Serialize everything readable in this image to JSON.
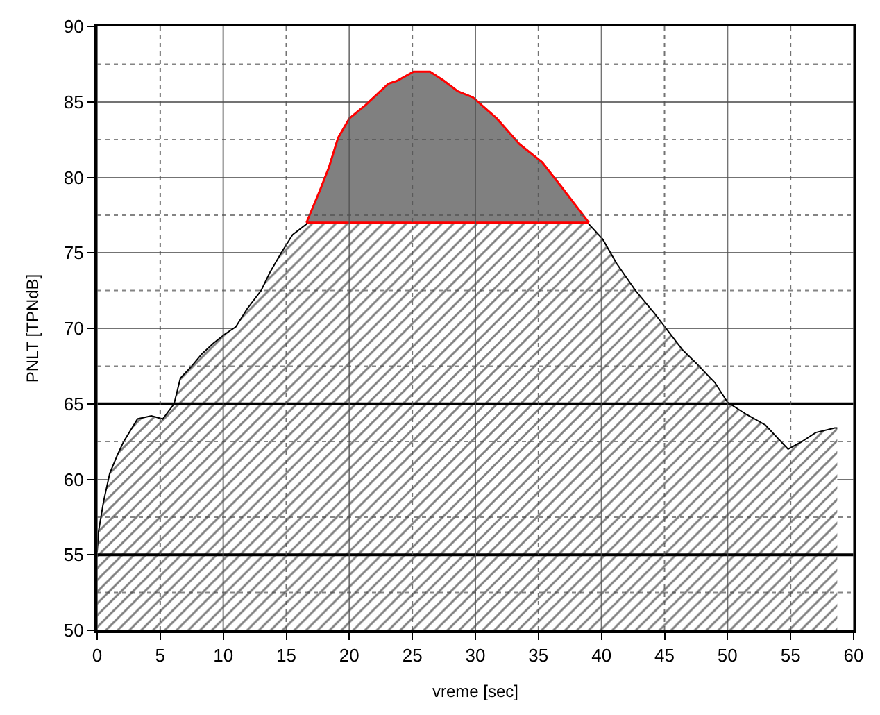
{
  "chart_data": {
    "type": "area",
    "xlabel": "vreme [sec]",
    "ylabel": "PNLT [TPNdB]",
    "xlim": [
      0,
      60
    ],
    "xticks": [
      0,
      5,
      10,
      15,
      20,
      25,
      30,
      35,
      40,
      45,
      50,
      55,
      60
    ],
    "ylim": [
      50,
      90
    ],
    "yticks": [
      50,
      55,
      60,
      65,
      70,
      75,
      80,
      85,
      90
    ],
    "grid": true,
    "series": [
      {
        "color": "#000000",
        "x": [
          0,
          0.1,
          0.5,
          1.0,
          1.6,
          2.1,
          3.2,
          4.3,
          5.2,
          6.1,
          6.6,
          7.5,
          8.3,
          9.2,
          10.1,
          11.0,
          11.9,
          13.0,
          13.7,
          14.6,
          15.5,
          16.6,
          17.7,
          18.4,
          19.1,
          20.0,
          21.3,
          23.1,
          23.8,
          25.1,
          26.4,
          27.5,
          28.6,
          29.8,
          31.7,
          33.5,
          35.3,
          36.8,
          39.0,
          40.1,
          41.2,
          42.7,
          44.2,
          45.3,
          46.4,
          47.5,
          49.0,
          50.0,
          51.5,
          53.0,
          54.8,
          55.9,
          57.0,
          58.5,
          58.7
        ],
        "values": [
          55.2,
          56.5,
          58.5,
          60.4,
          61.6,
          62.5,
          64.0,
          64.2,
          64.0,
          65.0,
          66.7,
          67.5,
          68.3,
          69.0,
          69.6,
          70.1,
          71.3,
          72.5,
          73.7,
          75.0,
          76.2,
          76.9,
          79.2,
          80.7,
          82.6,
          83.9,
          84.8,
          86.2,
          86.4,
          87.0,
          87.0,
          86.4,
          85.7,
          85.3,
          83.9,
          82.2,
          81.0,
          79.4,
          76.9,
          75.9,
          74.3,
          72.5,
          71.0,
          69.8,
          68.6,
          67.7,
          66.4,
          65.1,
          64.3,
          63.6,
          62.0,
          62.5,
          63.1,
          63.4,
          63.4
        ]
      },
      {
        "type": "line",
        "color": "#ff0000",
        "x": [
          16.6,
          17.7,
          18.4,
          19.1,
          20.0,
          21.3,
          23.1,
          23.8,
          25.1,
          26.4,
          27.5,
          28.6,
          29.8,
          31.7,
          33.5,
          35.3,
          36.8,
          39.0
        ],
        "values": [
          77,
          77,
          77,
          77,
          77,
          77,
          77,
          77,
          77,
          77,
          77,
          77,
          77,
          77,
          77,
          77,
          77,
          77
        ]
      },
      {
        "color": "#808080",
        "x": [
          16.6,
          17.7,
          18.4,
          19.1,
          20.0,
          21.3,
          23.1,
          23.8,
          25.1,
          26.4,
          27.5,
          28.6,
          29.8,
          31.7,
          33.5,
          35.3,
          36.8,
          39.0
        ],
        "values": [
          77,
          79.2,
          80.7,
          82.6,
          83.9,
          84.8,
          86.2,
          86.4,
          87.0,
          87.0,
          86.4,
          85.7,
          85.3,
          83.9,
          82.2,
          81.0,
          79.4,
          77
        ]
      }
    ],
    "ref_lines": [
      {
        "axis": "y",
        "value": 55,
        "color": "#000000"
      },
      {
        "axis": "y",
        "value": 65,
        "color": "#000000"
      }
    ]
  }
}
